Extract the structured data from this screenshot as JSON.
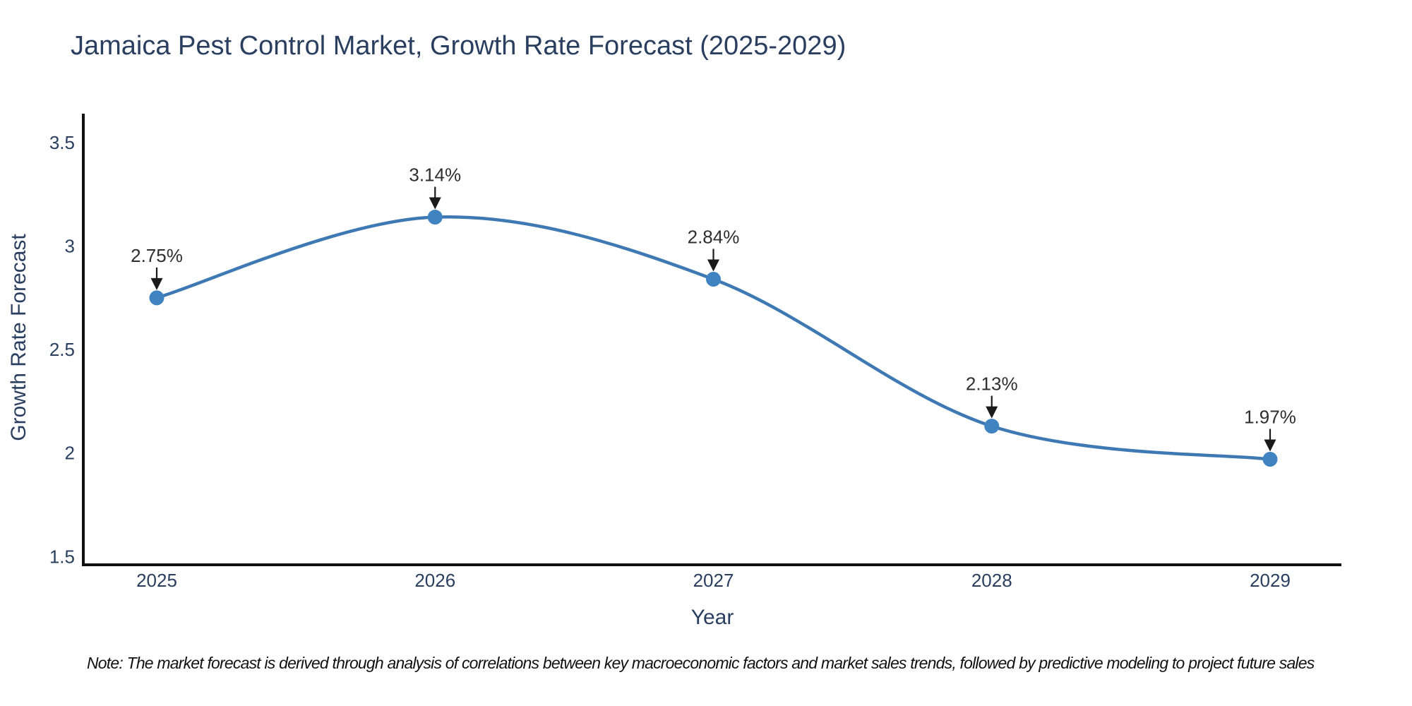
{
  "page": {
    "background": "#ffffff"
  },
  "title": "Jamaica Pest Control Market, Growth Rate Forecast (2025-2029)",
  "note": "Note: The market forecast is derived through analysis of correlations between key macroeconomic factors and market sales trends, followed by predictive modeling to project future sales",
  "chart_data": {
    "type": "line",
    "title": "Jamaica Pest Control Market, Growth Rate Forecast (2025-2029)",
    "xlabel": "Year",
    "ylabel": "Growth Rate Forecast",
    "categories": [
      "2025",
      "2026",
      "2027",
      "2028",
      "2029"
    ],
    "series": [
      {
        "name": "Growth Rate Forecast",
        "values": [
          2.75,
          3.14,
          2.84,
          2.13,
          1.97
        ]
      }
    ],
    "point_labels": [
      "2.75%",
      "3.14%",
      "2.84%",
      "2.13%",
      "1.97%"
    ],
    "ytick_labels": [
      "1.5",
      "2",
      "2.5",
      "3",
      "3.5"
    ],
    "ytick_values": [
      1.5,
      2,
      2.5,
      3,
      3.5
    ],
    "ylim": [
      1.46,
      3.64
    ],
    "line_shape": "spline",
    "grid": false,
    "legend": "none",
    "annotations": "arrow-labels-above-points",
    "colors": {
      "line": "#3e79b4",
      "marker": "#3f83c1",
      "axis": "#111111",
      "tick_text": "#2a3f5f",
      "axis_title_text": "#2a3f5f",
      "annotation_text": "#2e2e2e",
      "arrow": "#1a1a1a"
    }
  }
}
